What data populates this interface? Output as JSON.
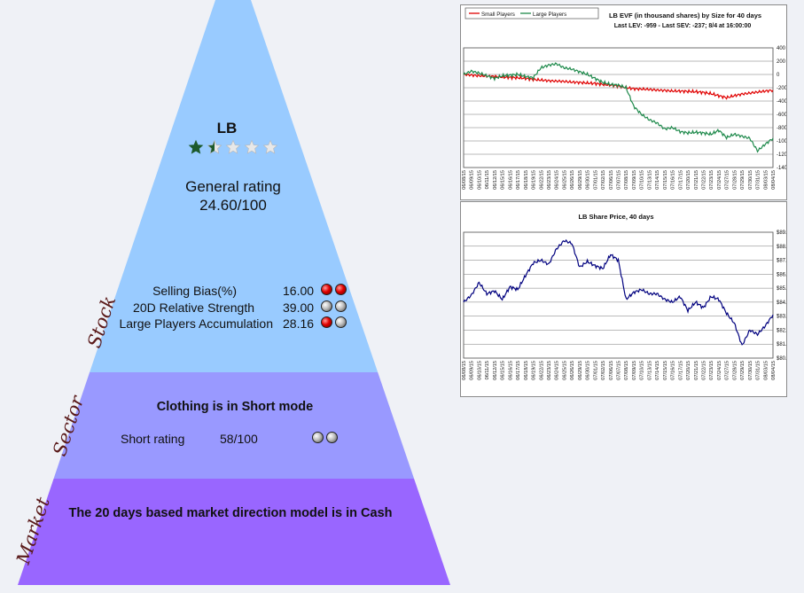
{
  "stock": {
    "ticker": "LB",
    "stars": {
      "filled": 1.5,
      "total": 5
    },
    "general_rating_label": "General rating",
    "general_rating_value": "24.60/100",
    "metrics": [
      {
        "label": "Selling Bias(%)",
        "value": "16.00",
        "balls": [
          "red",
          "red"
        ]
      },
      {
        "label": "20D Relative Strength",
        "value": "39.00",
        "balls": [
          "grey",
          "grey"
        ]
      },
      {
        "label": "Large Players Accumulation",
        "value": "28.16",
        "balls": [
          "red",
          "grey"
        ]
      }
    ]
  },
  "sector": {
    "title": "Clothing is in Short mode",
    "rating_label": "Short rating",
    "rating_value": "58/100",
    "balls": [
      "grey",
      "grey"
    ]
  },
  "market": {
    "text": "The 20 days based market direction model is in Cash"
  },
  "side_labels": {
    "stock": "Stock",
    "sector": "Sector",
    "market": "Market"
  },
  "colors": {
    "stock_band": "#99cbff",
    "sector_band": "#9999ff",
    "market_band": "#9966ff",
    "star_fill": "#1c5a2c",
    "small_players": "#e00000",
    "large_players": "#1f8a4c",
    "price_line": "#00007f"
  },
  "chart_data": [
    {
      "type": "line",
      "title": "LB EVF (in thousand shares) by Size for 40 days",
      "subtitle": "Last LEV: -959 - Last SEV: -237; 8/4 at 16:00:00",
      "legend": [
        "Small Players",
        "Large Players"
      ],
      "legend_position": "top-left",
      "ylim": [
        -1400,
        400
      ],
      "yticks": [
        400,
        200,
        0,
        -200,
        -400,
        -600,
        -800,
        -1000,
        -1200,
        -1400
      ],
      "grid": true,
      "x": [
        "06/08/15",
        "06/09/15",
        "06/10/15",
        "06/11/15",
        "06/12/15",
        "06/15/15",
        "06/16/15",
        "06/17/15",
        "06/18/15",
        "06/19/15",
        "06/22/15",
        "06/23/15",
        "06/24/15",
        "06/25/15",
        "06/26/15",
        "06/29/15",
        "06/30/15",
        "07/01/15",
        "07/02/15",
        "07/06/15",
        "07/07/15",
        "07/08/15",
        "07/09/15",
        "07/10/15",
        "07/13/15",
        "07/14/15",
        "07/15/15",
        "07/16/15",
        "07/17/15",
        "07/20/15",
        "07/21/15",
        "07/22/15",
        "07/23/15",
        "07/24/15",
        "07/27/15",
        "07/28/15",
        "07/29/15",
        "07/30/15",
        "07/31/15",
        "08/03/15",
        "08/04/15"
      ],
      "series": [
        {
          "name": "Small Players",
          "values": [
            0,
            -10,
            -20,
            -25,
            -30,
            -40,
            -45,
            -50,
            -60,
            -75,
            -85,
            -95,
            -100,
            -105,
            -115,
            -120,
            -130,
            -135,
            -150,
            -160,
            -175,
            -200,
            -215,
            -220,
            -225,
            -235,
            -240,
            -250,
            -250,
            -255,
            -260,
            -270,
            -290,
            -320,
            -350,
            -320,
            -295,
            -280,
            -265,
            -250,
            -237
          ]
        },
        {
          "name": "Large Players",
          "values": [
            0,
            50,
            20,
            -20,
            -60,
            -20,
            -10,
            0,
            -30,
            -50,
            100,
            140,
            160,
            100,
            80,
            40,
            0,
            -60,
            -120,
            -150,
            -160,
            -200,
            -480,
            -600,
            -680,
            -730,
            -820,
            -800,
            -860,
            -880,
            -870,
            -880,
            -900,
            -840,
            -950,
            -900,
            -930,
            -960,
            -1150,
            -1050,
            -959
          ]
        }
      ]
    },
    {
      "type": "line",
      "title": "LB Share Price, 40 days",
      "ylim": [
        80,
        89
      ],
      "yticks": [
        "$89.0",
        "$88.0",
        "$87.0",
        "$86.0",
        "$85.0",
        "$84.0",
        "$83.0",
        "$82.0",
        "$81.0",
        "$80.0"
      ],
      "grid": true,
      "x": [
        "06/08/15",
        "06/09/15",
        "06/10/15",
        "06/11/15",
        "06/12/15",
        "06/15/15",
        "06/16/15",
        "06/17/15",
        "06/18/15",
        "06/19/15",
        "06/22/15",
        "06/23/15",
        "06/24/15",
        "06/25/15",
        "06/26/15",
        "06/29/15",
        "06/30/15",
        "07/01/15",
        "07/02/15",
        "07/06/15",
        "07/07/15",
        "07/08/15",
        "07/09/15",
        "07/10/15",
        "07/13/15",
        "07/14/15",
        "07/15/15",
        "07/16/15",
        "07/17/15",
        "07/20/15",
        "07/21/15",
        "07/22/15",
        "07/23/15",
        "07/24/15",
        "07/27/15",
        "07/28/15",
        "07/29/15",
        "07/30/15",
        "07/31/15",
        "08/03/15",
        "08/04/15"
      ],
      "series": [
        {
          "name": "",
          "values": [
            84.0,
            84.5,
            85.4,
            84.6,
            84.8,
            84.2,
            85.1,
            84.9,
            85.9,
            86.8,
            87.0,
            86.7,
            87.8,
            88.4,
            88.2,
            86.5,
            86.9,
            86.6,
            86.4,
            87.4,
            87.0,
            84.2,
            84.7,
            84.9,
            84.6,
            84.6,
            84.2,
            84.0,
            84.4,
            83.4,
            84.0,
            83.6,
            84.4,
            84.2,
            83.2,
            82.5,
            80.9,
            82.0,
            81.7,
            82.3,
            83.1
          ]
        }
      ]
    }
  ]
}
